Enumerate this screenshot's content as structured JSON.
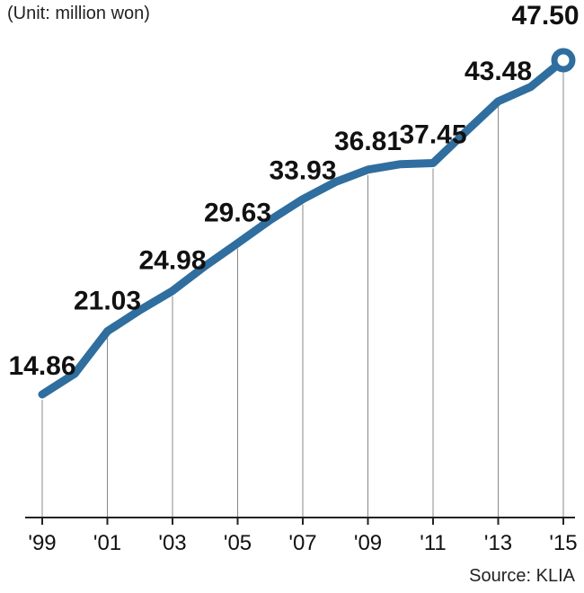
{
  "chart_data": {
    "type": "line",
    "unit_label": "(Unit: million won)",
    "source": "Source: KLIA",
    "x": [
      "'99",
      "'00",
      "'01",
      "'02",
      "'03",
      "'04",
      "'05",
      "'06",
      "'07",
      "'08",
      "'09",
      "'10",
      "'11",
      "'12",
      "'13",
      "'14",
      "'15"
    ],
    "tick_labels": [
      "'99",
      "'01",
      "'03",
      "'05",
      "'07",
      "'09",
      "'11",
      "'13",
      "'15"
    ],
    "series": [
      {
        "values": [
          14.86,
          16.9,
          21.03,
          23.1,
          24.98,
          27.4,
          29.63,
          31.9,
          33.93,
          35.6,
          36.81,
          37.35,
          37.45,
          40.5,
          43.48,
          44.9,
          47.5
        ]
      }
    ],
    "data_labels": [
      {
        "x": "'99",
        "text": "14.86"
      },
      {
        "x": "'01",
        "text": "21.03"
      },
      {
        "x": "'03",
        "text": "24.98"
      },
      {
        "x": "'05",
        "text": "29.63"
      },
      {
        "x": "'07",
        "text": "33.93"
      },
      {
        "x": "'09",
        "text": "36.81"
      },
      {
        "x": "'11",
        "text": "37.45"
      },
      {
        "x": "'13",
        "text": "43.48"
      },
      {
        "x": "'15",
        "text": "47.50"
      }
    ],
    "grid": "vertical drop lines at labeled years",
    "colors": {
      "line": "#2f6e9e",
      "marker_fill": "#ffffff",
      "axis": "#222222",
      "dropline": "#888888",
      "text": "#111111"
    }
  }
}
